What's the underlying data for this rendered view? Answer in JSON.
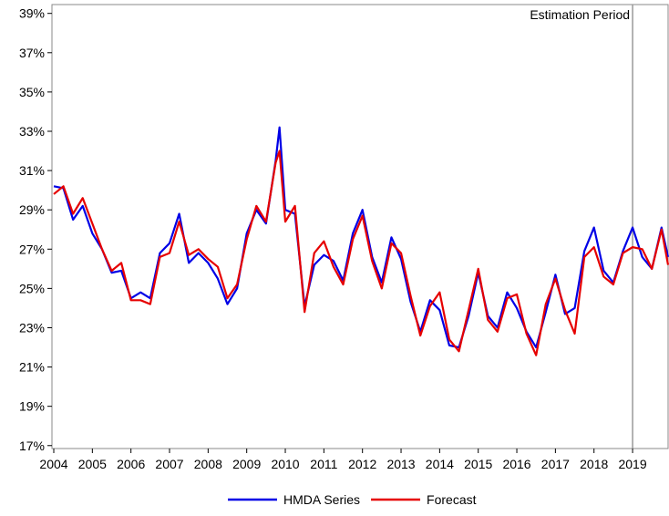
{
  "chart_data": {
    "type": "line",
    "annotation": "Estimation Period",
    "annotation_x": 2019,
    "x": [
      2004.0,
      2004.25,
      2004.5,
      2004.75,
      2005.0,
      2005.25,
      2005.5,
      2005.75,
      2006.0,
      2006.25,
      2006.5,
      2006.75,
      2007.0,
      2007.25,
      2007.5,
      2007.75,
      2008.0,
      2008.25,
      2008.5,
      2008.75,
      2009.0,
      2009.25,
      2009.5,
      2009.75,
      2009.85,
      2010.0,
      2010.25,
      2010.5,
      2010.75,
      2011.0,
      2011.25,
      2011.5,
      2011.75,
      2012.0,
      2012.25,
      2012.5,
      2012.75,
      2013.0,
      2013.25,
      2013.5,
      2013.75,
      2014.0,
      2014.25,
      2014.5,
      2014.75,
      2015.0,
      2015.25,
      2015.5,
      2015.75,
      2016.0,
      2016.25,
      2016.5,
      2016.75,
      2017.0,
      2017.25,
      2017.5,
      2017.75,
      2018.0,
      2018.25,
      2018.5,
      2018.75,
      2019.0,
      2019.25,
      2019.5,
      2019.75,
      2019.92
    ],
    "series": [
      {
        "name": "HMDA Series",
        "color": "#0000e6",
        "values": [
          30.2,
          30.1,
          28.5,
          29.2,
          27.8,
          27.0,
          25.8,
          25.9,
          24.5,
          24.8,
          24.5,
          26.8,
          27.3,
          28.8,
          26.3,
          26.8,
          26.3,
          25.5,
          24.2,
          25.0,
          27.8,
          29.0,
          28.3,
          31.5,
          33.2,
          29.0,
          28.8,
          24.1,
          26.2,
          26.7,
          26.4,
          25.4,
          27.8,
          29.0,
          26.6,
          25.3,
          27.6,
          26.5,
          24.3,
          22.8,
          24.4,
          23.9,
          22.1,
          22.0,
          23.6,
          25.8,
          23.6,
          23.0,
          24.8,
          24.0,
          22.8,
          22.0,
          23.8,
          25.7,
          23.7,
          24.0,
          26.9,
          28.1,
          25.9,
          25.3,
          26.9,
          28.1,
          26.6,
          26.0,
          28.1,
          26.6
        ]
      },
      {
        "name": "Forecast",
        "color": "#e60000",
        "values": [
          29.8,
          30.2,
          28.8,
          29.6,
          28.3,
          27.0,
          25.9,
          26.3,
          24.4,
          24.4,
          24.2,
          26.6,
          26.8,
          28.4,
          26.7,
          27.0,
          26.5,
          26.1,
          24.5,
          25.2,
          27.5,
          29.2,
          28.4,
          31.4,
          32.0,
          28.4,
          29.2,
          23.8,
          26.8,
          27.4,
          26.1,
          25.2,
          27.5,
          28.7,
          26.4,
          25.0,
          27.3,
          26.8,
          24.6,
          22.6,
          24.1,
          24.8,
          22.4,
          21.8,
          23.9,
          26.0,
          23.4,
          22.8,
          24.5,
          24.7,
          22.7,
          21.6,
          24.2,
          25.5,
          23.9,
          22.7,
          26.6,
          27.1,
          25.6,
          25.2,
          26.8,
          27.1,
          27.0,
          26.0,
          28.0,
          26.2
        ]
      }
    ],
    "xlim": [
      2004,
      2019.92
    ],
    "xticks": [
      2004,
      2005,
      2006,
      2007,
      2008,
      2009,
      2010,
      2011,
      2012,
      2013,
      2014,
      2015,
      2016,
      2017,
      2018,
      2019
    ],
    "ylim": [
      16.85,
      39.45
    ],
    "yticks": [
      {
        "value": 17,
        "label": "17%"
      },
      {
        "value": 19,
        "label": "19%"
      },
      {
        "value": 21,
        "label": "21%"
      },
      {
        "value": 23,
        "label": "23%"
      },
      {
        "value": 25,
        "label": "25%"
      },
      {
        "value": 27,
        "label": "27%"
      },
      {
        "value": 29,
        "label": "29%"
      },
      {
        "value": 31,
        "label": "31%"
      },
      {
        "value": 33,
        "label": "33%"
      },
      {
        "value": 35,
        "label": "35%"
      },
      {
        "value": 37,
        "label": "37%"
      },
      {
        "value": 39,
        "label": "39%"
      }
    ]
  }
}
